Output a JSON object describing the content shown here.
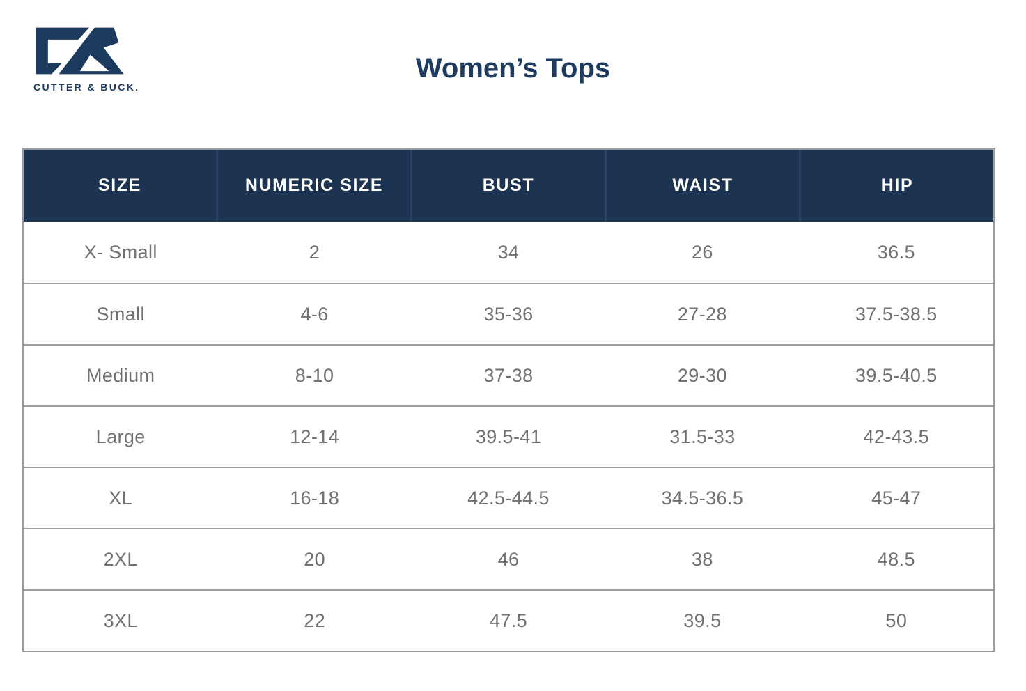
{
  "brand": {
    "name": "CUTTER & BUCK.",
    "logo_icon": "cutter-buck-cb-monogram"
  },
  "header": {
    "title": "Women’s Tops"
  },
  "colors": {
    "navy": "#1c3351",
    "navy_accent": "#1d3a5f",
    "header_divider": "#2b4263",
    "header_text": "#ffffff",
    "body_text": "#6f7174",
    "grid_line": "#9e9e9e",
    "background": "#ffffff"
  },
  "table": {
    "columns": [
      "SIZE",
      "NUMERIC SIZE",
      "BUST",
      "WAIST",
      "HIP"
    ],
    "rows": [
      [
        "X- Small",
        "2",
        "34",
        "26",
        "36.5"
      ],
      [
        "Small",
        "4-6",
        "35-36",
        "27-28",
        "37.5-38.5"
      ],
      [
        "Medium",
        "8-10",
        "37-38",
        "29-30",
        "39.5-40.5"
      ],
      [
        "Large",
        "12-14",
        "39.5-41",
        "31.5-33",
        "42-43.5"
      ],
      [
        "XL",
        "16-18",
        "42.5-44.5",
        "34.5-36.5",
        "45-47"
      ],
      [
        "2XL",
        "20",
        "46",
        "38",
        "48.5"
      ],
      [
        "3XL",
        "22",
        "47.5",
        "39.5",
        "50"
      ]
    ]
  }
}
